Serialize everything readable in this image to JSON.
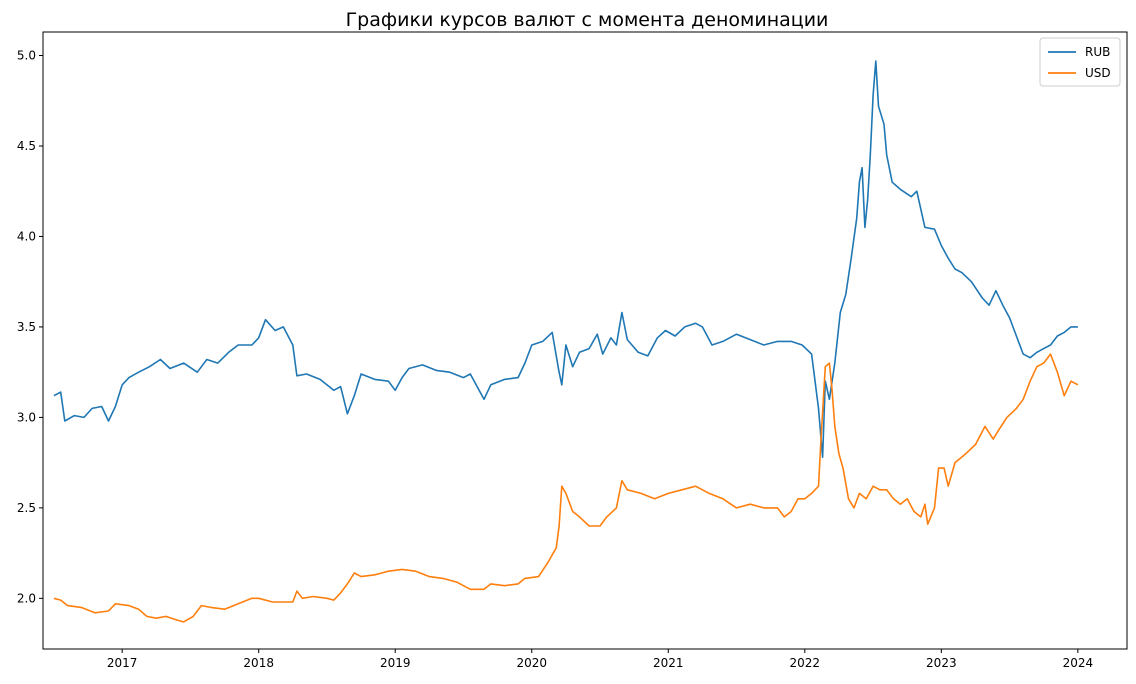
{
  "chart_data": {
    "type": "line",
    "title": "Графики курсов валют с момента деноминации",
    "xlabel": "",
    "ylabel": "",
    "xlim": [
      2016.42,
      2024.36
    ],
    "ylim": [
      1.72,
      5.13
    ],
    "x_ticks": [
      2017,
      2018,
      2019,
      2020,
      2021,
      2022,
      2023,
      2024
    ],
    "x_tick_labels": [
      "2017",
      "2018",
      "2019",
      "2020",
      "2021",
      "2022",
      "2023",
      "2024"
    ],
    "y_ticks": [
      2.0,
      2.5,
      3.0,
      3.5,
      4.0,
      4.5,
      5.0
    ],
    "y_tick_labels": [
      "2.0",
      "2.5",
      "3.0",
      "3.5",
      "4.0",
      "4.5",
      "5.0"
    ],
    "grid": false,
    "legend_position": "top-right",
    "series": [
      {
        "name": "RUB",
        "color": "#1f77b4",
        "points": [
          [
            2016.5,
            3.12
          ],
          [
            2016.55,
            3.14
          ],
          [
            2016.58,
            2.98
          ],
          [
            2016.65,
            3.01
          ],
          [
            2016.72,
            3.0
          ],
          [
            2016.78,
            3.05
          ],
          [
            2016.85,
            3.06
          ],
          [
            2016.9,
            2.98
          ],
          [
            2016.95,
            3.06
          ],
          [
            2017.0,
            3.18
          ],
          [
            2017.05,
            3.22
          ],
          [
            2017.12,
            3.25
          ],
          [
            2017.2,
            3.28
          ],
          [
            2017.28,
            3.32
          ],
          [
            2017.35,
            3.27
          ],
          [
            2017.45,
            3.3
          ],
          [
            2017.55,
            3.25
          ],
          [
            2017.62,
            3.32
          ],
          [
            2017.7,
            3.3
          ],
          [
            2017.78,
            3.36
          ],
          [
            2017.85,
            3.4
          ],
          [
            2017.95,
            3.4
          ],
          [
            2018.0,
            3.44
          ],
          [
            2018.05,
            3.54
          ],
          [
            2018.12,
            3.48
          ],
          [
            2018.18,
            3.5
          ],
          [
            2018.25,
            3.4
          ],
          [
            2018.28,
            3.23
          ],
          [
            2018.35,
            3.24
          ],
          [
            2018.45,
            3.21
          ],
          [
            2018.55,
            3.15
          ],
          [
            2018.6,
            3.17
          ],
          [
            2018.65,
            3.02
          ],
          [
            2018.7,
            3.12
          ],
          [
            2018.75,
            3.24
          ],
          [
            2018.85,
            3.21
          ],
          [
            2018.95,
            3.2
          ],
          [
            2019.0,
            3.15
          ],
          [
            2019.05,
            3.22
          ],
          [
            2019.1,
            3.27
          ],
          [
            2019.2,
            3.29
          ],
          [
            2019.3,
            3.26
          ],
          [
            2019.4,
            3.25
          ],
          [
            2019.5,
            3.22
          ],
          [
            2019.55,
            3.24
          ],
          [
            2019.65,
            3.1
          ],
          [
            2019.7,
            3.18
          ],
          [
            2019.8,
            3.21
          ],
          [
            2019.9,
            3.22
          ],
          [
            2019.95,
            3.3
          ],
          [
            2020.0,
            3.4
          ],
          [
            2020.08,
            3.42
          ],
          [
            2020.15,
            3.47
          ],
          [
            2020.2,
            3.25
          ],
          [
            2020.22,
            3.18
          ],
          [
            2020.25,
            3.4
          ],
          [
            2020.3,
            3.28
          ],
          [
            2020.35,
            3.36
          ],
          [
            2020.42,
            3.38
          ],
          [
            2020.48,
            3.46
          ],
          [
            2020.52,
            3.35
          ],
          [
            2020.58,
            3.44
          ],
          [
            2020.62,
            3.4
          ],
          [
            2020.66,
            3.58
          ],
          [
            2020.7,
            3.43
          ],
          [
            2020.78,
            3.36
          ],
          [
            2020.85,
            3.34
          ],
          [
            2020.92,
            3.44
          ],
          [
            2020.98,
            3.48
          ],
          [
            2021.05,
            3.45
          ],
          [
            2021.12,
            3.5
          ],
          [
            2021.2,
            3.52
          ],
          [
            2021.25,
            3.5
          ],
          [
            2021.32,
            3.4
          ],
          [
            2021.4,
            3.42
          ],
          [
            2021.5,
            3.46
          ],
          [
            2021.6,
            3.43
          ],
          [
            2021.7,
            3.4
          ],
          [
            2021.8,
            3.42
          ],
          [
            2021.9,
            3.42
          ],
          [
            2021.98,
            3.4
          ],
          [
            2022.05,
            3.35
          ],
          [
            2022.1,
            3.05
          ],
          [
            2022.13,
            2.78
          ],
          [
            2022.15,
            3.2
          ],
          [
            2022.18,
            3.1
          ],
          [
            2022.22,
            3.3
          ],
          [
            2022.26,
            3.58
          ],
          [
            2022.3,
            3.68
          ],
          [
            2022.34,
            3.88
          ],
          [
            2022.38,
            4.1
          ],
          [
            2022.4,
            4.3
          ],
          [
            2022.42,
            4.38
          ],
          [
            2022.44,
            4.05
          ],
          [
            2022.46,
            4.2
          ],
          [
            2022.48,
            4.45
          ],
          [
            2022.5,
            4.78
          ],
          [
            2022.52,
            4.97
          ],
          [
            2022.54,
            4.72
          ],
          [
            2022.58,
            4.62
          ],
          [
            2022.6,
            4.45
          ],
          [
            2022.64,
            4.3
          ],
          [
            2022.7,
            4.26
          ],
          [
            2022.78,
            4.22
          ],
          [
            2022.82,
            4.25
          ],
          [
            2022.88,
            4.05
          ],
          [
            2022.95,
            4.04
          ],
          [
            2023.0,
            3.95
          ],
          [
            2023.05,
            3.88
          ],
          [
            2023.1,
            3.82
          ],
          [
            2023.15,
            3.8
          ],
          [
            2023.22,
            3.75
          ],
          [
            2023.3,
            3.66
          ],
          [
            2023.35,
            3.62
          ],
          [
            2023.4,
            3.7
          ],
          [
            2023.45,
            3.62
          ],
          [
            2023.5,
            3.55
          ],
          [
            2023.55,
            3.45
          ],
          [
            2023.6,
            3.35
          ],
          [
            2023.65,
            3.33
          ],
          [
            2023.7,
            3.36
          ],
          [
            2023.75,
            3.38
          ],
          [
            2023.8,
            3.4
          ],
          [
            2023.85,
            3.45
          ],
          [
            2023.9,
            3.47
          ],
          [
            2023.95,
            3.5
          ],
          [
            2024.0,
            3.5
          ]
        ]
      },
      {
        "name": "USD",
        "color": "#ff7f0e",
        "points": [
          [
            2016.5,
            2.0
          ],
          [
            2016.55,
            1.99
          ],
          [
            2016.6,
            1.96
          ],
          [
            2016.7,
            1.95
          ],
          [
            2016.8,
            1.92
          ],
          [
            2016.9,
            1.93
          ],
          [
            2016.95,
            1.97
          ],
          [
            2017.05,
            1.96
          ],
          [
            2017.12,
            1.94
          ],
          [
            2017.18,
            1.9
          ],
          [
            2017.25,
            1.89
          ],
          [
            2017.32,
            1.9
          ],
          [
            2017.4,
            1.88
          ],
          [
            2017.45,
            1.87
          ],
          [
            2017.52,
            1.9
          ],
          [
            2017.58,
            1.96
          ],
          [
            2017.65,
            1.95
          ],
          [
            2017.75,
            1.94
          ],
          [
            2017.85,
            1.97
          ],
          [
            2017.95,
            2.0
          ],
          [
            2018.0,
            2.0
          ],
          [
            2018.1,
            1.98
          ],
          [
            2018.2,
            1.98
          ],
          [
            2018.25,
            1.98
          ],
          [
            2018.28,
            2.04
          ],
          [
            2018.32,
            2.0
          ],
          [
            2018.4,
            2.01
          ],
          [
            2018.5,
            2.0
          ],
          [
            2018.55,
            1.99
          ],
          [
            2018.6,
            2.03
          ],
          [
            2018.65,
            2.08
          ],
          [
            2018.7,
            2.14
          ],
          [
            2018.75,
            2.12
          ],
          [
            2018.85,
            2.13
          ],
          [
            2018.95,
            2.15
          ],
          [
            2019.05,
            2.16
          ],
          [
            2019.15,
            2.15
          ],
          [
            2019.25,
            2.12
          ],
          [
            2019.35,
            2.11
          ],
          [
            2019.45,
            2.09
          ],
          [
            2019.55,
            2.05
          ],
          [
            2019.65,
            2.05
          ],
          [
            2019.7,
            2.08
          ],
          [
            2019.8,
            2.07
          ],
          [
            2019.9,
            2.08
          ],
          [
            2019.95,
            2.11
          ],
          [
            2020.05,
            2.12
          ],
          [
            2020.12,
            2.2
          ],
          [
            2020.18,
            2.28
          ],
          [
            2020.2,
            2.4
          ],
          [
            2020.22,
            2.62
          ],
          [
            2020.25,
            2.58
          ],
          [
            2020.3,
            2.48
          ],
          [
            2020.35,
            2.45
          ],
          [
            2020.42,
            2.4
          ],
          [
            2020.5,
            2.4
          ],
          [
            2020.55,
            2.45
          ],
          [
            2020.62,
            2.5
          ],
          [
            2020.66,
            2.65
          ],
          [
            2020.7,
            2.6
          ],
          [
            2020.8,
            2.58
          ],
          [
            2020.9,
            2.55
          ],
          [
            2021.0,
            2.58
          ],
          [
            2021.1,
            2.6
          ],
          [
            2021.2,
            2.62
          ],
          [
            2021.3,
            2.58
          ],
          [
            2021.4,
            2.55
          ],
          [
            2021.5,
            2.5
          ],
          [
            2021.6,
            2.52
          ],
          [
            2021.7,
            2.5
          ],
          [
            2021.8,
            2.5
          ],
          [
            2021.85,
            2.45
          ],
          [
            2021.9,
            2.48
          ],
          [
            2021.95,
            2.55
          ],
          [
            2022.0,
            2.55
          ],
          [
            2022.05,
            2.58
          ],
          [
            2022.1,
            2.62
          ],
          [
            2022.12,
            2.9
          ],
          [
            2022.15,
            3.28
          ],
          [
            2022.18,
            3.3
          ],
          [
            2022.2,
            3.15
          ],
          [
            2022.22,
            2.95
          ],
          [
            2022.25,
            2.8
          ],
          [
            2022.28,
            2.72
          ],
          [
            2022.32,
            2.55
          ],
          [
            2022.36,
            2.5
          ],
          [
            2022.4,
            2.58
          ],
          [
            2022.45,
            2.55
          ],
          [
            2022.5,
            2.62
          ],
          [
            2022.55,
            2.6
          ],
          [
            2022.6,
            2.6
          ],
          [
            2022.65,
            2.55
          ],
          [
            2022.7,
            2.52
          ],
          [
            2022.75,
            2.55
          ],
          [
            2022.8,
            2.48
          ],
          [
            2022.85,
            2.45
          ],
          [
            2022.88,
            2.52
          ],
          [
            2022.9,
            2.41
          ],
          [
            2022.95,
            2.5
          ],
          [
            2022.98,
            2.72
          ],
          [
            2023.02,
            2.72
          ],
          [
            2023.05,
            2.62
          ],
          [
            2023.1,
            2.75
          ],
          [
            2023.18,
            2.8
          ],
          [
            2023.25,
            2.85
          ],
          [
            2023.32,
            2.95
          ],
          [
            2023.38,
            2.88
          ],
          [
            2023.42,
            2.93
          ],
          [
            2023.48,
            3.0
          ],
          [
            2023.55,
            3.05
          ],
          [
            2023.6,
            3.1
          ],
          [
            2023.65,
            3.2
          ],
          [
            2023.7,
            3.28
          ],
          [
            2023.75,
            3.3
          ],
          [
            2023.8,
            3.35
          ],
          [
            2023.85,
            3.25
          ],
          [
            2023.9,
            3.12
          ],
          [
            2023.95,
            3.2
          ],
          [
            2024.0,
            3.18
          ]
        ]
      }
    ]
  }
}
